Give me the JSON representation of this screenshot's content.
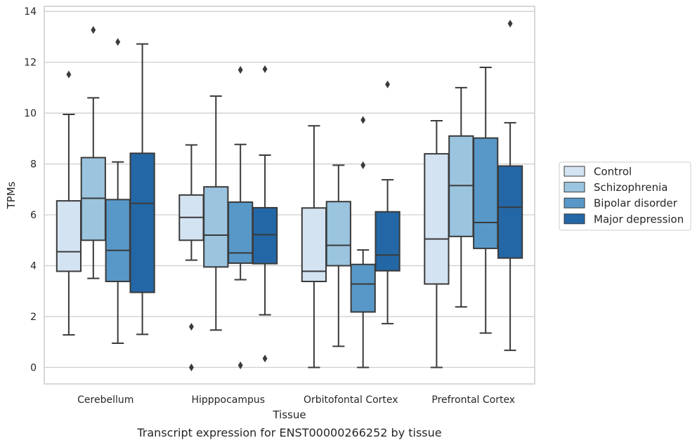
{
  "chart_data": {
    "type": "box",
    "caption": "Transcript expression for ENST00000266252 by tissue",
    "xlabel": "Tissue",
    "ylabel": "TPMs",
    "ylim": [
      -0.65,
      14.2
    ],
    "yticks": [
      0,
      2,
      4,
      6,
      8,
      10,
      12,
      14
    ],
    "grid": "horizontal",
    "legend_position": "right",
    "categories": [
      "Cerebellum",
      "Hipppocampus",
      "Orbitofontal Cortex",
      "Prefrontal Cortex"
    ],
    "series": [
      {
        "name": "Control",
        "color": "#d4e3f2",
        "boxes": [
          {
            "min": 1.28,
            "q1": 3.78,
            "median": 4.55,
            "q3": 6.55,
            "max": 9.95,
            "outliers": [
              11.52
            ]
          },
          {
            "min": 4.22,
            "q1": 5.0,
            "median": 5.9,
            "q3": 6.78,
            "max": 8.75,
            "outliers": [
              1.6,
              0.0
            ]
          },
          {
            "min": 0.0,
            "q1": 3.38,
            "median": 3.78,
            "q3": 6.27,
            "max": 9.5,
            "outliers": []
          },
          {
            "min": 0.0,
            "q1": 3.28,
            "median": 5.05,
            "q3": 8.4,
            "max": 9.7,
            "outliers": []
          }
        ]
      },
      {
        "name": "Schizophrenia",
        "color": "#9bc4df",
        "boxes": [
          {
            "min": 3.5,
            "q1": 5.0,
            "median": 6.65,
            "q3": 8.25,
            "max": 10.6,
            "outliers": [
              13.27
            ]
          },
          {
            "min": 1.47,
            "q1": 3.95,
            "median": 5.2,
            "q3": 7.1,
            "max": 10.67,
            "outliers": []
          },
          {
            "min": 0.83,
            "q1": 4.0,
            "median": 4.8,
            "q3": 6.52,
            "max": 7.95,
            "outliers": []
          },
          {
            "min": 2.38,
            "q1": 5.15,
            "median": 7.15,
            "q3": 9.1,
            "max": 11.0,
            "outliers": []
          }
        ]
      },
      {
        "name": "Bipolar disorder",
        "color": "#5898c8",
        "boxes": [
          {
            "min": 0.95,
            "q1": 3.38,
            "median": 4.6,
            "q3": 6.6,
            "max": 8.08,
            "outliers": [
              12.8
            ]
          },
          {
            "min": 3.45,
            "q1": 4.1,
            "median": 4.5,
            "q3": 6.5,
            "max": 8.77,
            "outliers": [
              11.7,
              0.08
            ]
          },
          {
            "min": 0.0,
            "q1": 2.18,
            "median": 3.28,
            "q3": 4.05,
            "max": 4.62,
            "outliers": [
              9.73,
              7.95
            ]
          },
          {
            "min": 1.35,
            "q1": 4.68,
            "median": 5.7,
            "q3": 9.02,
            "max": 11.8,
            "outliers": []
          }
        ]
      },
      {
        "name": "Major depression",
        "color": "#2467a6",
        "boxes": [
          {
            "min": 1.3,
            "q1": 2.95,
            "median": 6.45,
            "q3": 8.42,
            "max": 12.72,
            "outliers": []
          },
          {
            "min": 2.07,
            "q1": 4.08,
            "median": 5.22,
            "q3": 6.28,
            "max": 8.35,
            "outliers": [
              11.73,
              0.35
            ]
          },
          {
            "min": 1.72,
            "q1": 3.8,
            "median": 4.42,
            "q3": 6.12,
            "max": 7.38,
            "outliers": [
              11.13
            ]
          },
          {
            "min": 0.67,
            "q1": 4.3,
            "median": 6.3,
            "q3": 7.92,
            "max": 9.62,
            "outliers": [
              13.52
            ]
          }
        ]
      }
    ]
  }
}
